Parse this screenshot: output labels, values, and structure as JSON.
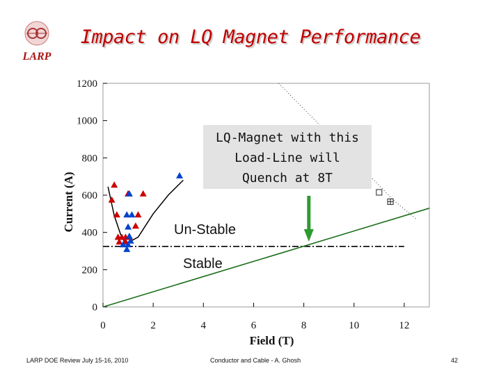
{
  "slide": {
    "title": "Impact on LQ Magnet Performance",
    "logo_text": "LARP",
    "callout_lines": [
      "LQ-Magnet with this",
      "Load-Line will",
      "Quench at 8T"
    ],
    "label_unstable": "Un-Stable",
    "label_stable": "Stable",
    "footer_left": "LARP DOE Review July 15-16, 2010",
    "footer_center": "Conductor and Cable - A. Ghosh",
    "footer_page": "42"
  },
  "colors": {
    "title": "#c00000",
    "red_marker": "#cc0000",
    "blue_marker": "#0044cc",
    "load_line": "#1a6e1a",
    "arrow": "#2f9a2f",
    "callout_bg": "#e3e3e3"
  },
  "chart_data": {
    "type": "scatter",
    "xlabel": "Field (T)",
    "ylabel": "Current (A)",
    "xlim": [
      0,
      13
    ],
    "ylim": [
      0,
      1200
    ],
    "xticks": [
      0,
      2,
      4,
      6,
      8,
      10,
      12
    ],
    "yticks": [
      0,
      200,
      400,
      600,
      800,
      1000,
      1200
    ],
    "series": [
      {
        "name": "red triangles",
        "marker": "triangle",
        "points": [
          [
            0.45,
            655
          ],
          [
            0.35,
            575
          ],
          [
            1.0,
            608
          ],
          [
            1.6,
            608
          ],
          [
            0.55,
            495
          ],
          [
            1.4,
            495
          ],
          [
            0.6,
            375
          ],
          [
            0.75,
            375
          ],
          [
            0.9,
            375
          ],
          [
            1.05,
            375
          ],
          [
            1.3,
            435
          ],
          [
            0.65,
            350
          ],
          [
            0.9,
            350
          ]
        ]
      },
      {
        "name": "blue triangles",
        "marker": "triangle",
        "points": [
          [
            3.05,
            705
          ],
          [
            1.05,
            608
          ],
          [
            0.95,
            495
          ],
          [
            1.15,
            495
          ],
          [
            1.0,
            430
          ],
          [
            1.05,
            380
          ],
          [
            0.8,
            335
          ],
          [
            1.0,
            335
          ],
          [
            1.1,
            355
          ],
          [
            0.95,
            310
          ]
        ]
      },
      {
        "name": "open squares",
        "marker": "square",
        "points": [
          [
            11.0,
            615
          ],
          [
            11.45,
            565
          ]
        ]
      },
      {
        "name": "stability boundary",
        "marker": "none",
        "points": [
          [
            0.2,
            645
          ],
          [
            0.45,
            490
          ],
          [
            0.7,
            390
          ],
          [
            0.9,
            338
          ],
          [
            1.4,
            375
          ],
          [
            2.0,
            500
          ],
          [
            2.6,
            600
          ],
          [
            3.2,
            680
          ]
        ]
      },
      {
        "name": "magnet short sample (dotted)",
        "marker": "none",
        "points": [
          [
            7.0,
            1200
          ],
          [
            11.6,
            570
          ],
          [
            12.5,
            470
          ]
        ]
      },
      {
        "name": "load line",
        "marker": "none",
        "points": [
          [
            0,
            0
          ],
          [
            13,
            530
          ]
        ]
      },
      {
        "name": "threshold (dash-dot)",
        "marker": "none",
        "points": [
          [
            0,
            325
          ],
          [
            12,
            325
          ]
        ]
      }
    ],
    "annotation": {
      "text": "Quench at 8T",
      "x": 8.2
    }
  }
}
